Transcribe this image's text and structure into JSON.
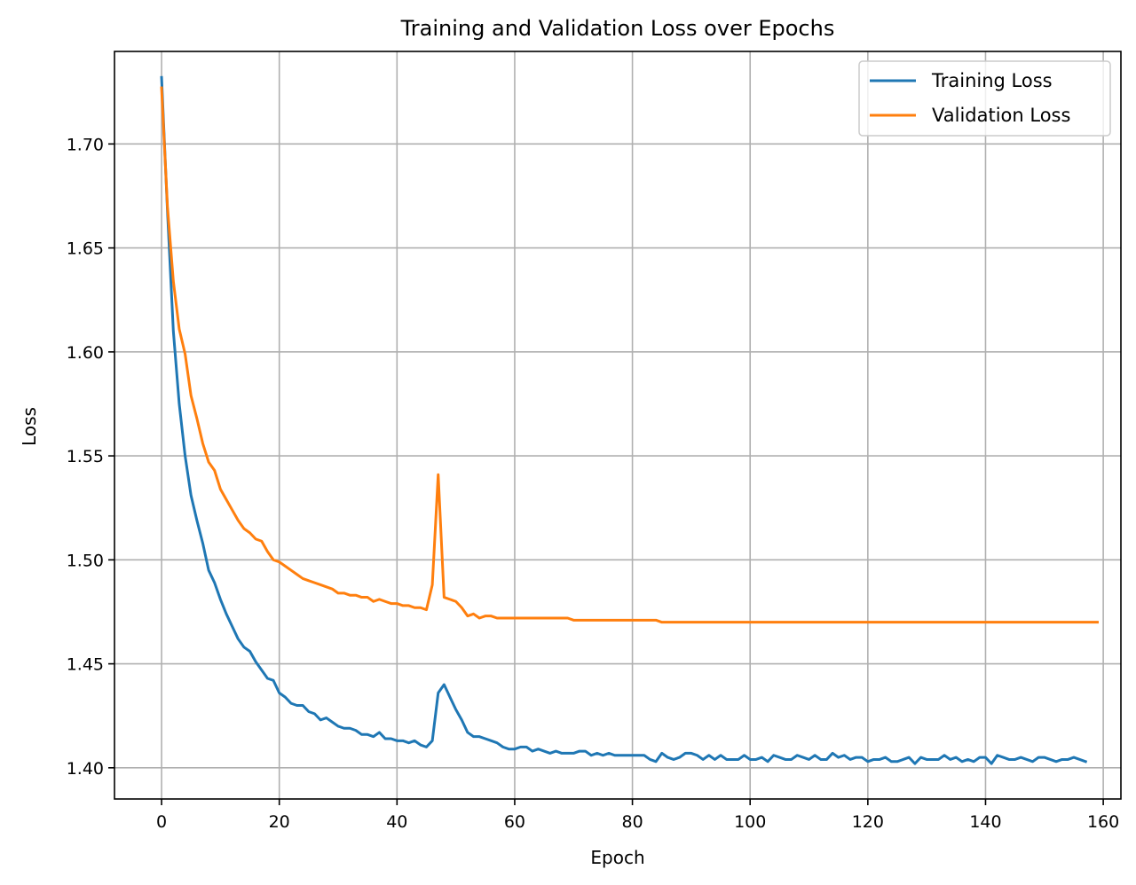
{
  "chart_data": {
    "type": "line",
    "title": "Training and Validation Loss over Epochs",
    "xlabel": "Epoch",
    "ylabel": "Loss",
    "xlim": [
      -8,
      163
    ],
    "ylim": [
      1.385,
      1.7445
    ],
    "xticks": [
      0,
      20,
      40,
      60,
      80,
      100,
      120,
      140,
      160
    ],
    "xtick_labels": [
      "0",
      "20",
      "40",
      "60",
      "80",
      "100",
      "120",
      "140",
      "160"
    ],
    "yticks": [
      1.4,
      1.45,
      1.5,
      1.55,
      1.6,
      1.65,
      1.7
    ],
    "ytick_labels": [
      "1.40",
      "1.45",
      "1.50",
      "1.55",
      "1.60",
      "1.65",
      "1.70"
    ],
    "grid": true,
    "legend_position": "top-right",
    "series": [
      {
        "name": "Training Loss",
        "color": "#1f77b4",
        "values": [
          1.732,
          1.668,
          1.61,
          1.575,
          1.55,
          1.531,
          1.519,
          1.508,
          1.495,
          1.489,
          1.481,
          1.474,
          1.468,
          1.462,
          1.458,
          1.456,
          1.451,
          1.447,
          1.443,
          1.442,
          1.436,
          1.434,
          1.431,
          1.43,
          1.43,
          1.427,
          1.426,
          1.423,
          1.424,
          1.422,
          1.42,
          1.419,
          1.419,
          1.418,
          1.416,
          1.416,
          1.415,
          1.417,
          1.414,
          1.414,
          1.413,
          1.413,
          1.412,
          1.413,
          1.411,
          1.41,
          1.413,
          1.436,
          1.44,
          1.434,
          1.428,
          1.423,
          1.417,
          1.415,
          1.415,
          1.414,
          1.413,
          1.412,
          1.41,
          1.409,
          1.409,
          1.41,
          1.41,
          1.408,
          1.409,
          1.408,
          1.407,
          1.408,
          1.407,
          1.407,
          1.407,
          1.408,
          1.408,
          1.406,
          1.407,
          1.406,
          1.407,
          1.406,
          1.406,
          1.406,
          1.406,
          1.406,
          1.406,
          1.404,
          1.403,
          1.407,
          1.405,
          1.404,
          1.405,
          1.407,
          1.407,
          1.406,
          1.404,
          1.406,
          1.404,
          1.406,
          1.404,
          1.404,
          1.404,
          1.406,
          1.404,
          1.404,
          1.405,
          1.403,
          1.406,
          1.405,
          1.404,
          1.404,
          1.406,
          1.405,
          1.404,
          1.406,
          1.404,
          1.404,
          1.407,
          1.405,
          1.406,
          1.404,
          1.405,
          1.405,
          1.403,
          1.404,
          1.404,
          1.405,
          1.403,
          1.403,
          1.404,
          1.405,
          1.402,
          1.405,
          1.404,
          1.404,
          1.404,
          1.406,
          1.404,
          1.405,
          1.403,
          1.404,
          1.403,
          1.405,
          1.405,
          1.402,
          1.406,
          1.405,
          1.404,
          1.404,
          1.405,
          1.404,
          1.403,
          1.405,
          1.405,
          1.404,
          1.403,
          1.404,
          1.404,
          1.405,
          1.404,
          1.403
        ]
      },
      {
        "name": "Validation Loss",
        "color": "#ff7f0e",
        "values": [
          1.727,
          1.67,
          1.634,
          1.611,
          1.599,
          1.579,
          1.568,
          1.556,
          1.547,
          1.543,
          1.534,
          1.529,
          1.524,
          1.519,
          1.515,
          1.513,
          1.51,
          1.509,
          1.504,
          1.5,
          1.499,
          1.497,
          1.495,
          1.493,
          1.491,
          1.49,
          1.489,
          1.488,
          1.487,
          1.486,
          1.484,
          1.484,
          1.483,
          1.483,
          1.482,
          1.482,
          1.48,
          1.481,
          1.48,
          1.479,
          1.479,
          1.478,
          1.478,
          1.477,
          1.477,
          1.476,
          1.488,
          1.541,
          1.482,
          1.481,
          1.48,
          1.477,
          1.473,
          1.474,
          1.472,
          1.473,
          1.473,
          1.472,
          1.472,
          1.472,
          1.472,
          1.472,
          1.472,
          1.472,
          1.472,
          1.472,
          1.472,
          1.472,
          1.472,
          1.472,
          1.471,
          1.471,
          1.471,
          1.471,
          1.471,
          1.471,
          1.471,
          1.471,
          1.471,
          1.471,
          1.471,
          1.471,
          1.471,
          1.471,
          1.471,
          1.47,
          1.47,
          1.47,
          1.47,
          1.47,
          1.47,
          1.47,
          1.47,
          1.47,
          1.47,
          1.47,
          1.47,
          1.47,
          1.47,
          1.47,
          1.47,
          1.47,
          1.47,
          1.47,
          1.47,
          1.47,
          1.47,
          1.47,
          1.47,
          1.47,
          1.47,
          1.47,
          1.47,
          1.47,
          1.47,
          1.47,
          1.47,
          1.47,
          1.47,
          1.47,
          1.47,
          1.47,
          1.47,
          1.47,
          1.47,
          1.47,
          1.47,
          1.47,
          1.47,
          1.47,
          1.47,
          1.47,
          1.47,
          1.47,
          1.47,
          1.47,
          1.47,
          1.47,
          1.47,
          1.47,
          1.47,
          1.47,
          1.47,
          1.47,
          1.47,
          1.47,
          1.47,
          1.47,
          1.47,
          1.47,
          1.47,
          1.47,
          1.47,
          1.47,
          1.47,
          1.47,
          1.47,
          1.47,
          1.47,
          1.47
        ]
      }
    ]
  }
}
